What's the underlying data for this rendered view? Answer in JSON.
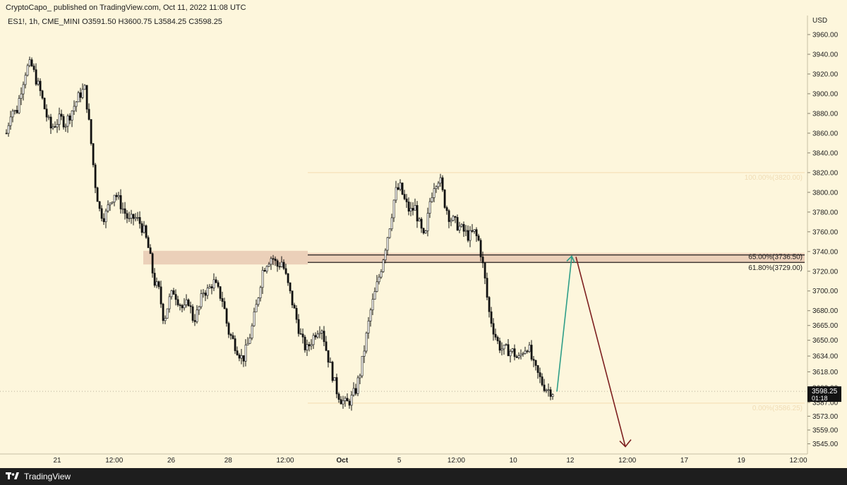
{
  "header": {
    "publisher_line": "CryptoCapo_ published on TradingView.com, Oct 11, 2022 11:08 UTC"
  },
  "legend": {
    "text": "ES1!, 1h, CME_MINI  O3591.50  H3600.75  L3584.25  C3598.25"
  },
  "currency": "USD",
  "footer": {
    "brand": "TradingView"
  },
  "colors": {
    "background": "#fdf6dc",
    "candle": "#111111",
    "zone": "#e8c9b3",
    "fib_line": "#f4ddb0",
    "up_arrow": "#2e9e88",
    "down_arrow": "#7d1f1f"
  },
  "chart_data": {
    "type": "candlestick",
    "symbol": "ES1!",
    "interval": "1h",
    "exchange": "CME_MINI",
    "ohlc_current": {
      "open": 3591.5,
      "high": 3600.75,
      "low": 3584.25,
      "close": 3598.25
    },
    "last_price_label": "3598.25",
    "countdown_label": "01:18",
    "price_axis_labels": [
      "3960.00",
      "3940.00",
      "3920.00",
      "3900.00",
      "3880.00",
      "3860.00",
      "3840.00",
      "3820.00",
      "3800.00",
      "3780.00",
      "3760.00",
      "3740.00",
      "3720.00",
      "3700.00",
      "3680.00",
      "3665.00",
      "3650.00",
      "3634.00",
      "3618.00",
      "3602.00",
      "3587.00",
      "3573.00",
      "3559.00",
      "3545.00"
    ],
    "time_axis_labels": [
      "21",
      "12:00",
      "26",
      "28",
      "12:00",
      "Oct",
      "5",
      "12:00",
      "10",
      "12",
      "12:00",
      "17",
      "19",
      "12:00"
    ],
    "time_axis_bold": [
      "Oct"
    ],
    "fib_levels": [
      {
        "label": "100.00%(3820.00)",
        "price": 3820.0,
        "faded": true
      },
      {
        "label": "65.00%(3736.50)",
        "price": 3736.5,
        "faded": false
      },
      {
        "label": "61.80%(3729.00)",
        "price": 3729.0,
        "faded": false
      },
      {
        "label": "0.00%(3586.25)",
        "price": 3586.25,
        "faded": true
      }
    ],
    "zone": {
      "price_low": 3729.0,
      "price_high": 3740.0
    },
    "projection": {
      "up": {
        "from_price": 3598,
        "to_price": 3736
      },
      "down": {
        "from_price": 3736,
        "to_price": 3545
      }
    },
    "close_path": [
      3860,
      3885,
      3880,
      3905,
      3925,
      3930,
      3915,
      3900,
      3880,
      3865,
      3870,
      3875,
      3870,
      3880,
      3890,
      3900,
      3905,
      3860,
      3810,
      3780,
      3775,
      3790,
      3800,
      3790,
      3780,
      3770,
      3775,
      3770,
      3760,
      3740,
      3710,
      3700,
      3670,
      3690,
      3700,
      3690,
      3680,
      3690,
      3670,
      3680,
      3700,
      3700,
      3710,
      3700,
      3690,
      3660,
      3650,
      3640,
      3630,
      3645,
      3665,
      3690,
      3720,
      3730,
      3735,
      3725,
      3730,
      3710,
      3690,
      3670,
      3650,
      3640,
      3650,
      3660,
      3665,
      3640,
      3620,
      3600,
      3590,
      3585,
      3590,
      3600,
      3620,
      3650,
      3680,
      3700,
      3720,
      3745,
      3770,
      3800,
      3805,
      3790,
      3780,
      3785,
      3765,
      3750,
      3790,
      3810,
      3815,
      3790,
      3775,
      3770,
      3765,
      3760,
      3755,
      3760,
      3750,
      3720,
      3680,
      3660,
      3645,
      3640,
      3640,
      3638,
      3630,
      3640,
      3645,
      3625,
      3615,
      3605,
      3600,
      3598
    ]
  }
}
